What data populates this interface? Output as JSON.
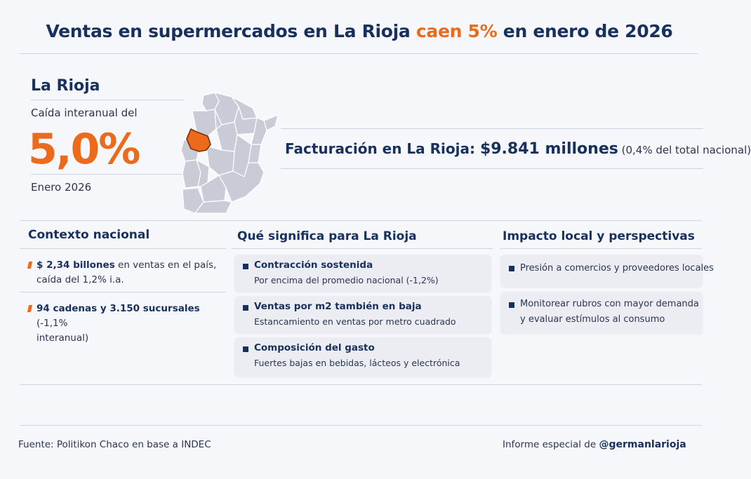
{
  "title": {
    "part1": "Ventas en supermercados en La Rioja ",
    "highlight": "caen 5%",
    "part2": " en enero de 2026"
  },
  "hero": {
    "region": "La Rioja",
    "label": "Caída interanual del",
    "value": "5,0%",
    "period": "Enero 2026",
    "billing_label": "Facturación en La Rioja: ",
    "billing_value": "$9.841 millones",
    "billing_note": " (0,4% del total nacional)"
  },
  "colors": {
    "navy": "#17305e",
    "orange": "#ec6a1c",
    "map_gray": "#c9ccd6",
    "map_highlight": "#ec6a1c"
  },
  "national": {
    "title": "Contexto nacional",
    "items": [
      {
        "bold": "$ 2,34 billones",
        "rest_line1": " en ventas en el país,",
        "line2": "caída del 1,2% i.a."
      },
      {
        "bold": "94 cadenas y 3.150 sucursales",
        "rest_line1": " (-1,1%",
        "line2": "interanual)"
      }
    ]
  },
  "meaning": {
    "title": "Qué significa para La Rioja",
    "cards": [
      {
        "title": "Contracción sostenida",
        "sub": "Por encima del promedio nacional (-1,2%)"
      },
      {
        "title": "Ventas por m2 también en baja",
        "sub": "Estancamiento en ventas por metro cuadrado"
      },
      {
        "title": "Composición del gasto",
        "sub": "Fuertes bajas en bebidas, lácteos y electrónica"
      }
    ]
  },
  "impact": {
    "title": "Impacto local y perspectivas",
    "cards": [
      {
        "line1": "Presión a comercios y proveedores locales"
      },
      {
        "line1": "Monitorear rubros con mayor demanda",
        "line2": "y evaluar estímulos al consumo"
      }
    ]
  },
  "footer": {
    "source": "Fuente: Politikon Chaco en base a INDEC",
    "credit_label": "Informe especial de ",
    "credit_handle": "@germanlarioja"
  }
}
